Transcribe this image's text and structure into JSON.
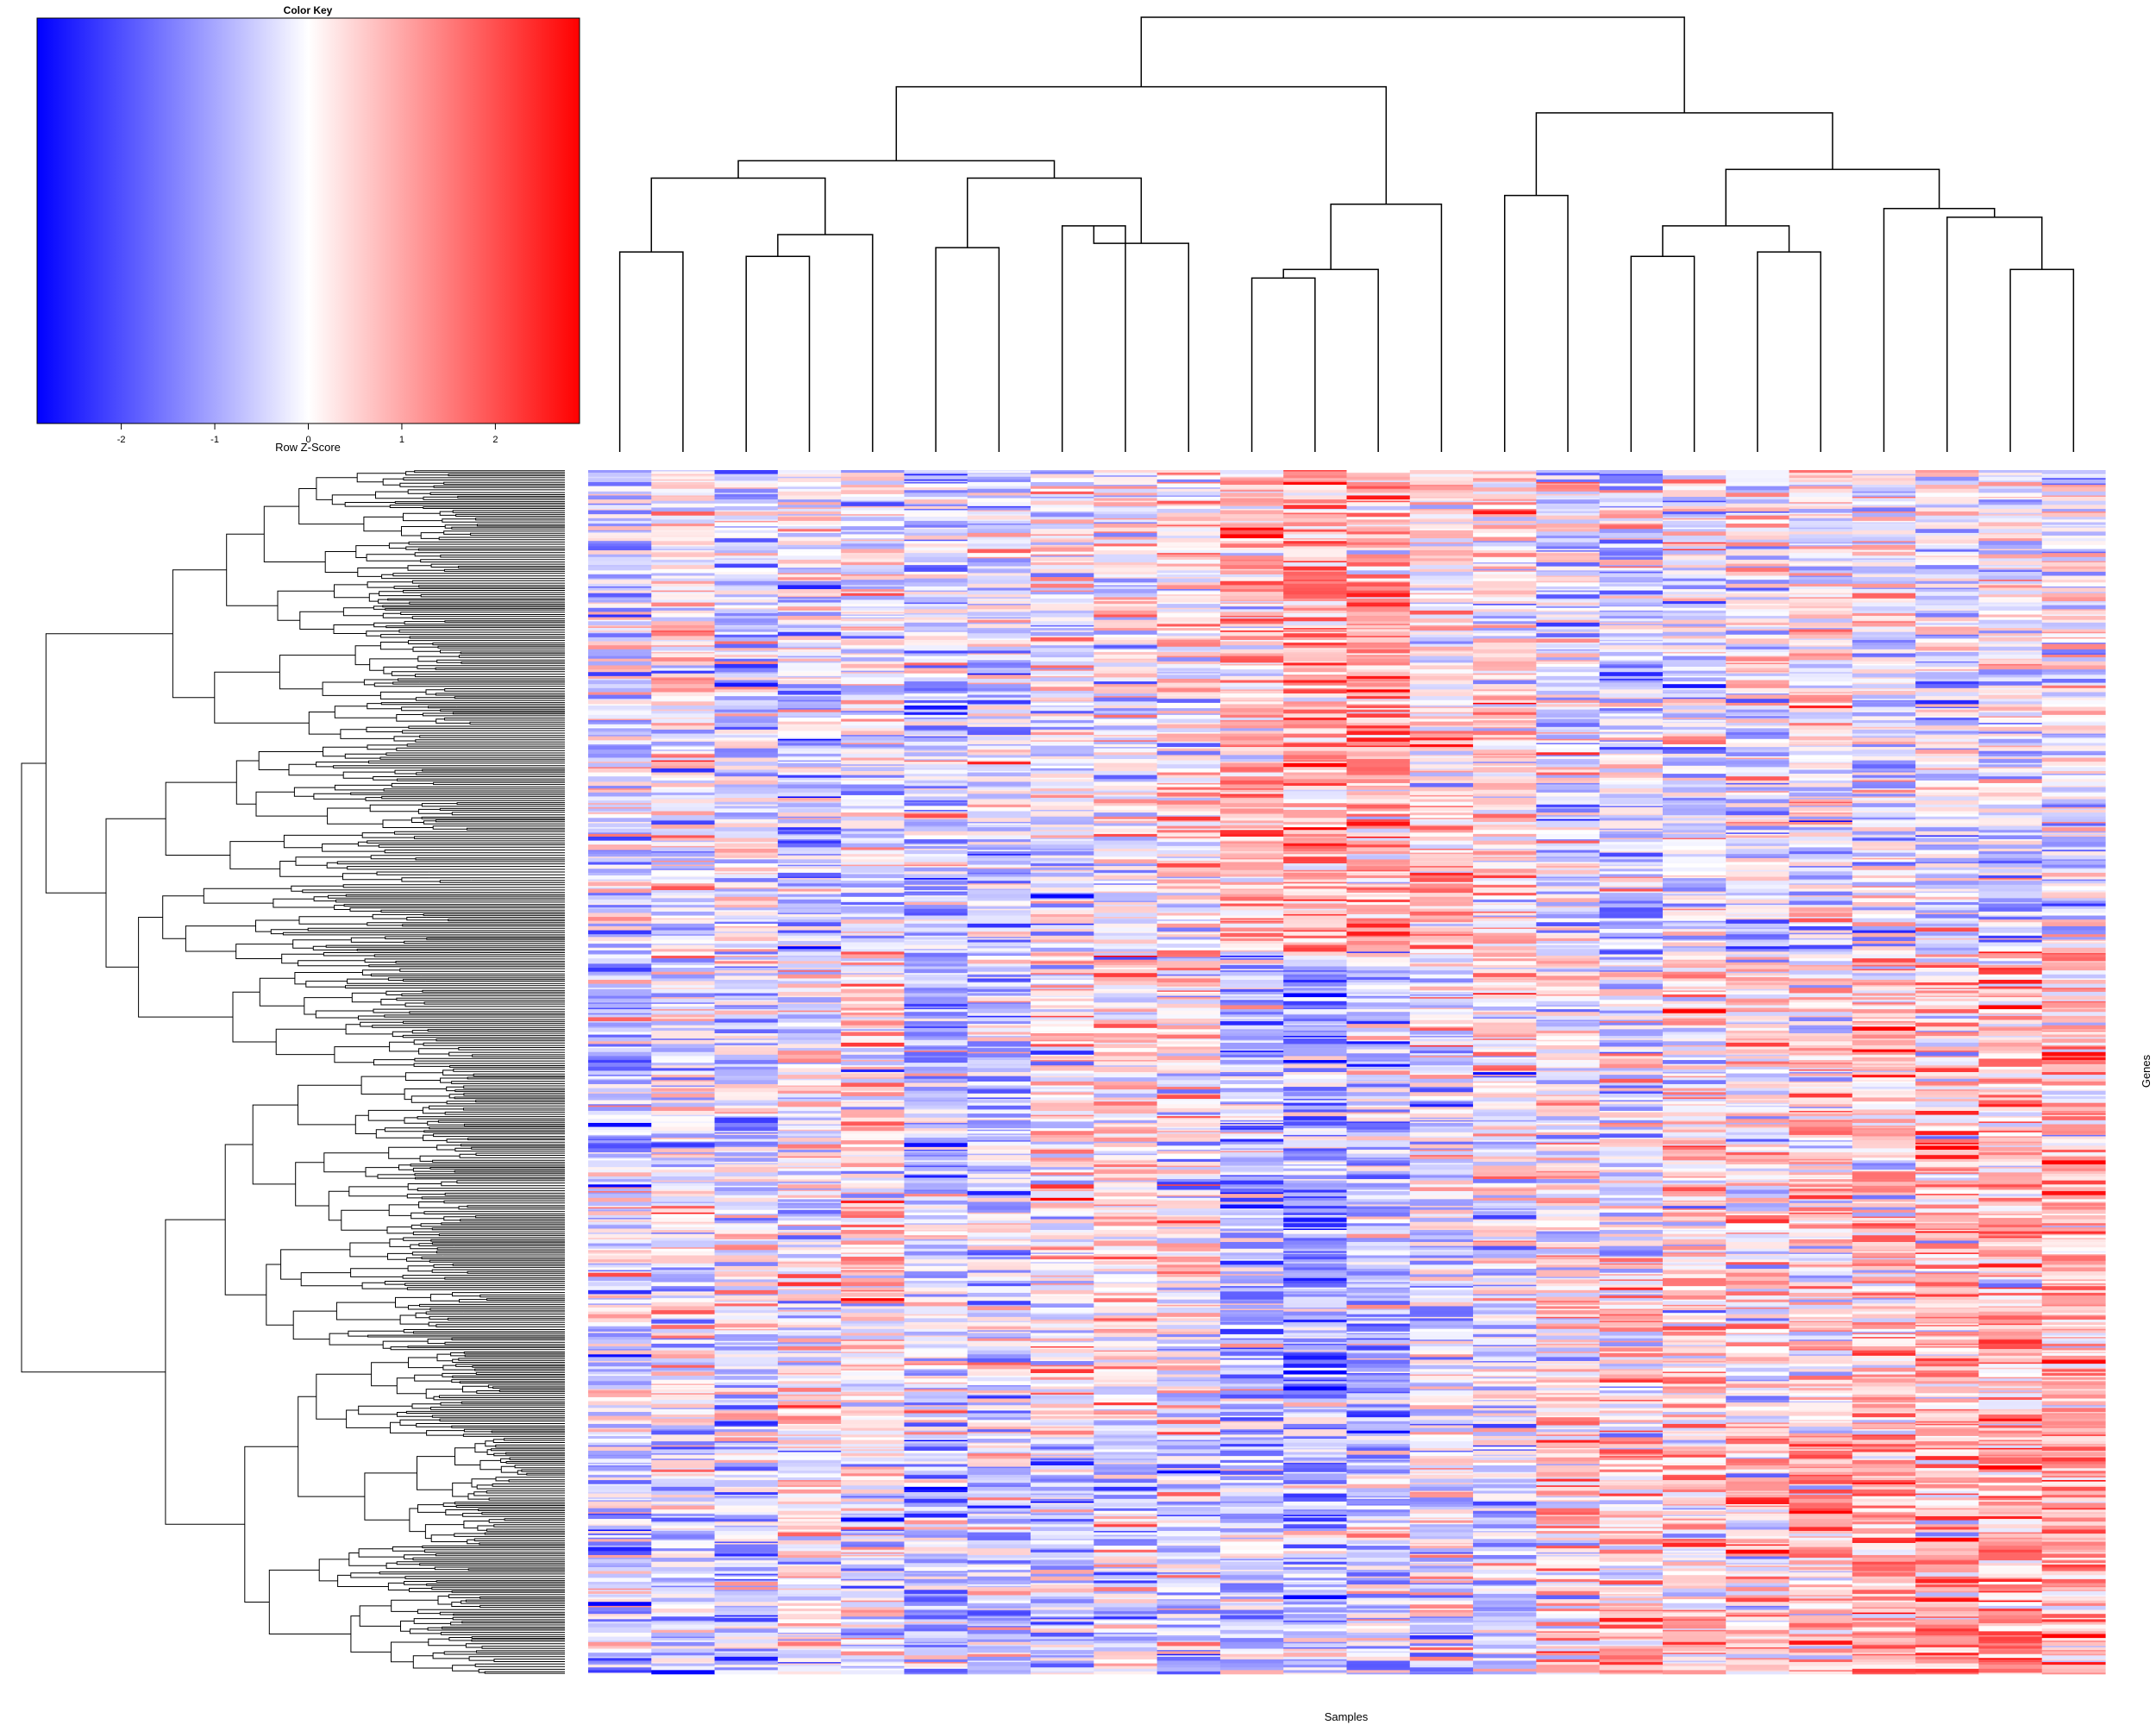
{
  "chart_data": {
    "type": "heatmap",
    "xlabel": "Samples",
    "ylabel": "Genes",
    "n_columns": 24,
    "n_rows": 900,
    "color_key": {
      "title": "Color Key",
      "xlabel": "Row Z-Score",
      "range": [
        -2.9,
        2.9
      ],
      "ticks": [
        "-2",
        "-1",
        "0",
        "1",
        "2"
      ],
      "colors": [
        "#0000ff",
        "#ffffff",
        "#ff0000"
      ]
    },
    "column_block_bias": [
      [
        -0.3,
        0.2,
        -0.4,
        -0.3,
        -0.1,
        -0.4,
        -0.4,
        -0.1,
        0.1,
        0.2,
        0.6,
        0.9,
        0.8,
        0.4,
        0.3,
        -0.2,
        -0.5,
        -0.2,
        -0.1,
        0.2,
        -0.1,
        -0.2,
        0.1,
        0.1
      ],
      [
        -0.3,
        -0.1,
        -0.4,
        -0.5,
        -0.3,
        -0.4,
        -0.5,
        -0.2,
        -0.1,
        0.1,
        0.8,
        1.1,
        1.0,
        0.6,
        0.4,
        -0.3,
        -0.5,
        -0.4,
        -0.3,
        -0.1,
        -0.2,
        -0.3,
        -0.3,
        -0.3
      ],
      [
        -0.7,
        -0.2,
        -0.5,
        -0.2,
        0.1,
        -0.8,
        -0.6,
        0.2,
        0.3,
        0.1,
        -0.7,
        -1.0,
        -0.6,
        -0.2,
        0.2,
        0.3,
        -0.1,
        0.3,
        0.3,
        0.4,
        0.5,
        0.5,
        0.7,
        0.8
      ],
      [
        -0.3,
        -0.1,
        -0.2,
        0.1,
        0.3,
        -0.2,
        -0.3,
        0.1,
        0.2,
        0.2,
        -0.8,
        -1.1,
        -0.8,
        -0.4,
        -0.5,
        0.3,
        0.2,
        0.4,
        0.3,
        0.4,
        0.6,
        0.7,
        0.9,
        0.9
      ],
      [
        -0.7,
        -0.4,
        -0.6,
        -0.1,
        -0.2,
        -0.6,
        -0.5,
        -0.6,
        -0.4,
        -0.5,
        -0.6,
        -0.8,
        -0.5,
        -0.2,
        -0.4,
        0.5,
        0.6,
        0.4,
        0.5,
        0.7,
        0.9,
        1.0,
        1.0,
        0.9
      ]
    ],
    "column_dendrogram": {
      "heights": {
        "root": 1.0,
        "left": 0.85,
        "right": 0.78
      },
      "leaf_order": [
        1,
        2,
        3,
        4,
        5,
        6,
        7,
        8,
        9,
        10,
        11,
        12,
        13,
        14,
        15,
        16,
        17,
        18,
        19,
        20,
        21,
        22,
        23,
        24
      ]
    }
  }
}
